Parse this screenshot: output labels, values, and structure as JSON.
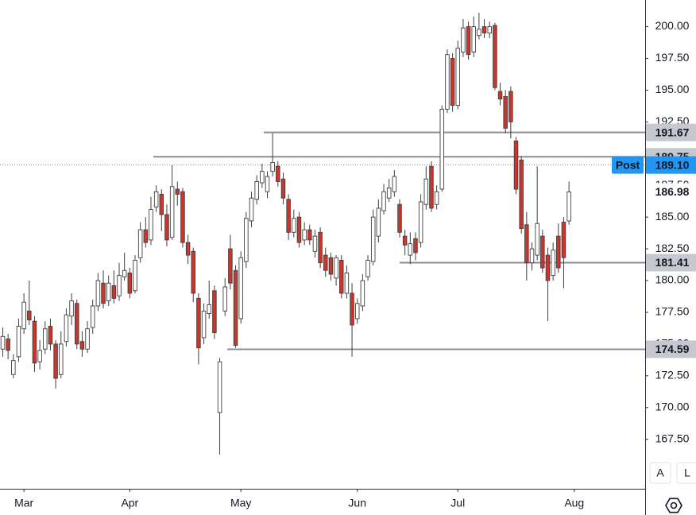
{
  "chart_data": {
    "type": "candlestick",
    "categories": [
      null,
      null,
      null,
      null,
      "Mar",
      null,
      null,
      null,
      null,
      null,
      null,
      null,
      null,
      null,
      null,
      null,
      null,
      null,
      null,
      null,
      null,
      null,
      null,
      null,
      "Apr",
      null,
      null,
      null,
      null,
      null,
      null,
      null,
      null,
      null,
      null,
      null,
      null,
      null,
      null,
      null,
      null,
      null,
      null,
      null,
      null,
      "May",
      null,
      null,
      null,
      null,
      null,
      null,
      null,
      null,
      null,
      null,
      null,
      null,
      null,
      null,
      null,
      null,
      null,
      null,
      null,
      null,
      null,
      "Jun",
      null,
      null,
      null,
      null,
      null,
      null,
      null,
      null,
      null,
      null,
      null,
      null,
      null,
      null,
      null,
      null,
      null,
      null,
      "Jul",
      null,
      null,
      null,
      null,
      null,
      null,
      null,
      null,
      null,
      null,
      null,
      null,
      null,
      null,
      null,
      null,
      null,
      null,
      null,
      null,
      null,
      "Aug"
    ],
    "open": [
      174.6,
      175.4,
      172.6,
      174.0,
      176.2,
      177.6,
      176.8,
      173.6,
      174.6,
      176.4,
      175.0,
      172.6,
      175.2,
      177.2,
      178.2,
      175.2,
      174.6,
      176.3,
      178.0,
      179.8,
      178.4,
      179.6,
      178.8,
      180.3,
      180.6,
      179.2,
      181.8,
      184.0,
      183.2,
      185.8,
      186.8,
      185.2,
      183.4,
      187.2,
      187.0,
      183.0,
      182.3,
      178.6,
      175.5,
      177.4,
      179.2,
      169.6,
      177.6,
      182.5,
      180.8,
      177.0,
      181.5,
      184.7,
      186.4,
      187.7,
      187.0,
      188.6,
      189.0,
      188.0,
      186.4,
      183.8,
      185.0,
      183.2,
      184.0,
      182.3,
      183.8,
      182.0,
      181.8,
      180.2,
      181.6,
      179.0,
      179.0,
      177.0,
      178.0,
      180.3,
      181.5,
      183.5,
      185.5,
      186.5,
      187.0,
      186.0,
      183.5,
      182.0,
      183.3,
      183.0,
      186.0,
      189.0,
      186.0,
      187.2,
      193.5,
      197.5,
      193.8,
      198.0,
      200.0,
      198.0,
      199.3,
      200.0,
      199.5,
      200.1,
      194.9,
      194.5,
      194.9,
      191.0,
      189.5,
      184.4,
      181.4,
      182.0,
      183.5,
      182.0,
      180.4,
      183.5,
      184.6,
      184.7,
      null
    ],
    "high": [
      176.3,
      175.8,
      174.2,
      177.0,
      179.0,
      180.0,
      177.2,
      175.3,
      176.8,
      177.0,
      175.3,
      176.0,
      177.8,
      179.0,
      178.5,
      176.0,
      176.8,
      178.5,
      180.6,
      180.8,
      180.4,
      180.8,
      181.4,
      182.2,
      181.0,
      182.0,
      184.6,
      185.0,
      186.6,
      187.5,
      187.2,
      186.0,
      189.1,
      187.8,
      187.3,
      183.6,
      182.6,
      179.0,
      178.2,
      180.0,
      179.6,
      173.9,
      180.2,
      183.6,
      181.2,
      182.3,
      185.4,
      187.0,
      188.3,
      189.2,
      188.6,
      191.6,
      189.4,
      188.5,
      186.8,
      185.6,
      185.4,
      184.6,
      184.4,
      184.0,
      184.2,
      182.6,
      182.2,
      182.0,
      182.0,
      181.2,
      179.8,
      178.6,
      180.5,
      182.0,
      185.6,
      186.4,
      187.6,
      188.0,
      188.7,
      186.4,
      184.0,
      183.8,
      183.8,
      186.8,
      189.0,
      189.4,
      187.5,
      193.8,
      198.2,
      197.9,
      198.9,
      200.6,
      200.4,
      200.8,
      201.1,
      200.6,
      200.4,
      200.3,
      195.6,
      195.0,
      195.3,
      191.3,
      189.8,
      185.4,
      183.0,
      189.0,
      184.0,
      182.6,
      183.0,
      184.5,
      185.0,
      187.8,
      null
    ],
    "low": [
      174.0,
      173.8,
      172.3,
      173.6,
      175.8,
      176.5,
      172.8,
      173.0,
      174.2,
      174.5,
      171.5,
      172.3,
      174.8,
      176.5,
      174.6,
      174.0,
      174.3,
      175.8,
      177.6,
      177.8,
      178.0,
      178.2,
      178.4,
      180.0,
      178.6,
      179.0,
      181.4,
      182.6,
      182.8,
      185.4,
      183.9,
      182.7,
      183.2,
      185.9,
      182.6,
      181.3,
      178.3,
      173.4,
      175.0,
      177.0,
      175.4,
      166.3,
      177.2,
      179.3,
      174.7,
      176.6,
      181.0,
      184.2,
      186.0,
      187.3,
      186.5,
      188.2,
      187.4,
      186.0,
      183.2,
      183.4,
      182.6,
      182.8,
      182.8,
      181.8,
      181.0,
      180.3,
      180.0,
      179.6,
      178.6,
      178.6,
      174.0,
      176.6,
      177.6,
      180.0,
      181.2,
      183.0,
      185.2,
      186.2,
      186.6,
      183.4,
      182.0,
      181.3,
      181.6,
      182.6,
      185.6,
      185.4,
      185.6,
      187.0,
      193.2,
      193.3,
      193.5,
      197.6,
      197.4,
      197.6,
      199.0,
      199.1,
      199.1,
      195.0,
      193.8,
      191.6,
      191.2,
      186.8,
      183.7,
      180.0,
      180.8,
      181.6,
      180.6,
      176.8,
      180.0,
      180.6,
      179.4,
      184.4,
      null
    ],
    "close": [
      175.6,
      174.5,
      173.7,
      176.4,
      178.3,
      176.9,
      173.5,
      174.5,
      176.2,
      175.0,
      172.3,
      175.0,
      177.3,
      178.4,
      175.0,
      174.6,
      176.2,
      178.0,
      180.0,
      178.2,
      179.8,
      178.6,
      180.4,
      180.8,
      179.0,
      181.6,
      184.0,
      183.0,
      185.6,
      187.0,
      185.2,
      183.2,
      187.4,
      186.8,
      183.0,
      182.0,
      179.0,
      174.7,
      177.6,
      178.1,
      175.9,
      173.6,
      179.5,
      179.8,
      174.9,
      181.8,
      184.9,
      186.5,
      187.8,
      188.6,
      188.2,
      189.3,
      187.8,
      186.5,
      183.8,
      184.9,
      183.0,
      184.0,
      183.2,
      183.5,
      181.4,
      180.8,
      180.5,
      181.8,
      179.0,
      180.6,
      176.5,
      178.2,
      180.0,
      181.6,
      185.0,
      185.7,
      187.0,
      187.3,
      188.2,
      183.8,
      182.8,
      182.9,
      182.2,
      186.2,
      188.0,
      185.7,
      187.0,
      193.5,
      197.8,
      193.8,
      198.3,
      199.9,
      197.8,
      200.0,
      199.8,
      199.5,
      200.0,
      195.2,
      194.3,
      192.0,
      192.5,
      187.2,
      184.1,
      181.4,
      182.5,
      184.5,
      181.0,
      180.0,
      182.4,
      181.0,
      181.8,
      186.98,
      null
    ],
    "up_color": "#ffffff",
    "down_color": "#c8372d",
    "border_color": "#3f3f3f",
    "ylim": [
      163.6,
      202.1
    ],
    "yticks": [
      {
        "value": 200,
        "label": "200.00"
      },
      {
        "value": 197.5,
        "label": "197.50"
      },
      {
        "value": 195,
        "label": "195.00"
      },
      {
        "value": 192.5,
        "label": "192.50"
      },
      {
        "value": 190,
        "label": "190.00"
      },
      {
        "value": 187.5,
        "label": "187.50"
      },
      {
        "value": 185,
        "label": "185.00"
      },
      {
        "value": 182.5,
        "label": "182.50"
      },
      {
        "value": 180,
        "label": "180.00"
      },
      {
        "value": 177.5,
        "label": "177.50"
      },
      {
        "value": 175,
        "label": "175.00"
      },
      {
        "value": 172.5,
        "label": "172.50"
      },
      {
        "value": 170,
        "label": "170.00"
      },
      {
        "value": 167.5,
        "label": "167.50"
      }
    ],
    "levels": [
      191.67,
      189.75,
      181.41,
      174.59
    ],
    "level_color": "#8a8d96",
    "last_price": 186.98,
    "post": {
      "label": "Post",
      "price": {
        "value": 189.1,
        "label": "189.10"
      },
      "color": "#2196f3"
    },
    "scale_buttons": [
      "A",
      "L"
    ]
  }
}
